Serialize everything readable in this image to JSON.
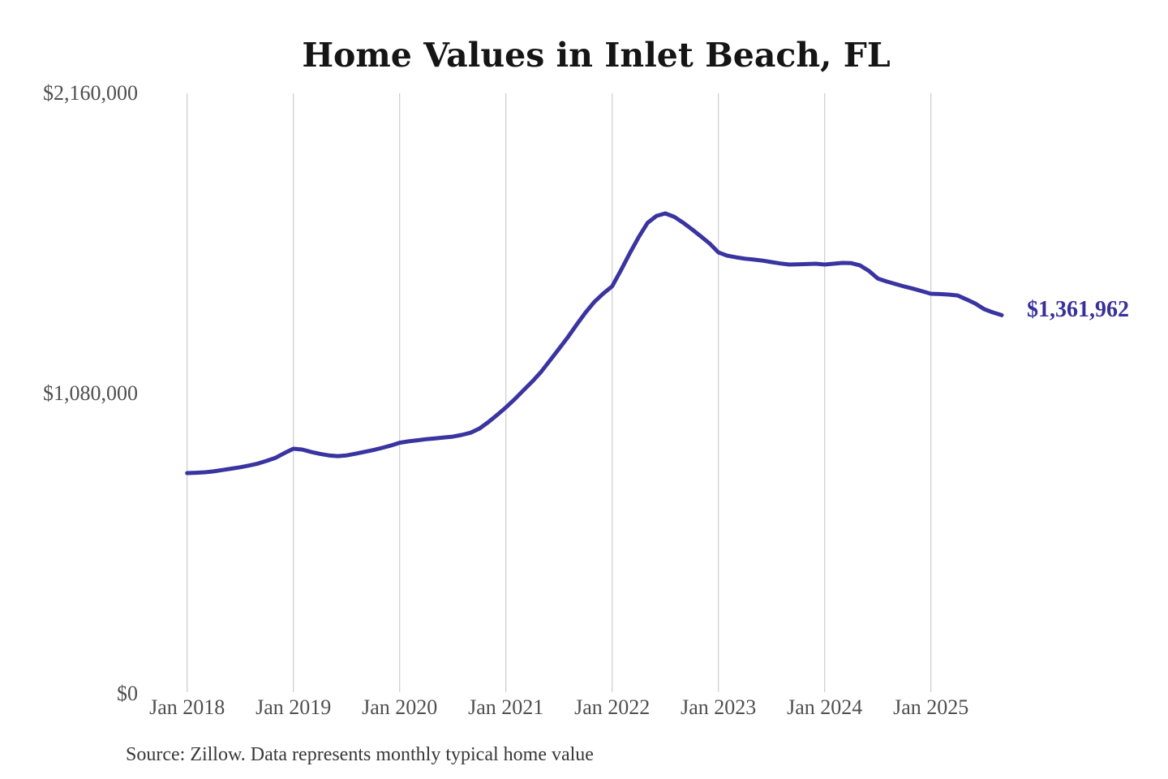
{
  "title": "Home Values in Inlet Beach, FL",
  "source_note": "Source: Zillow. Data represents monthly typical home value",
  "end_label": "$1,361,962",
  "colors": {
    "line": "#3a34a0",
    "end_label": "#39319b",
    "grid": "#cccccc",
    "tick_text": "#4f4f4f",
    "title_text": "#151515",
    "source_text": "#383838"
  },
  "y_axis": {
    "ticks": [
      {
        "label": "$2,160,000",
        "value": 2160000
      },
      {
        "label": "$1,080,000",
        "value": 1080000
      },
      {
        "label": "$0",
        "value": 0
      }
    ]
  },
  "chart_data": {
    "type": "line",
    "title": "Home Values in Inlet Beach, FL",
    "xlabel": "",
    "ylabel": "",
    "ylim": [
      0,
      2160000
    ],
    "grid": "vertical-only",
    "legend": "none",
    "x_tick_labels": [
      "Jan 2018",
      "Jan 2019",
      "Jan 2020",
      "Jan 2021",
      "Jan 2022",
      "Jan 2023",
      "Jan 2024",
      "Jan 2025"
    ],
    "series": [
      {
        "name": "Monthly typical home value",
        "start_month": "2018-01",
        "end_month": "2025-09",
        "interval": "monthly",
        "values": [
          794000,
          795000,
          797000,
          800000,
          805000,
          810000,
          815000,
          821000,
          828000,
          838000,
          849000,
          866000,
          881500,
          878500,
          870000,
          863000,
          857500,
          855000,
          857500,
          863500,
          870000,
          876500,
          884500,
          893000,
          903000,
          908000,
          912000,
          916000,
          919000,
          922000,
          925000,
          931000,
          939000,
          954000,
          977000,
          1003000,
          1030000,
          1060000,
          1092000,
          1124000,
          1159000,
          1200000,
          1241000,
          1283000,
          1328000,
          1372000,
          1410000,
          1440000,
          1466000,
          1524000,
          1585000,
          1643000,
          1694000,
          1719000,
          1728000,
          1716000,
          1695000,
          1671000,
          1646000,
          1620000,
          1588000,
          1576000,
          1570000,
          1565000,
          1562000,
          1558000,
          1553000,
          1548000,
          1544000,
          1545000,
          1546000,
          1547000,
          1544000,
          1547000,
          1550000,
          1549000,
          1541000,
          1521000,
          1494000,
          1483000,
          1474000,
          1465000,
          1457000,
          1448000,
          1439000,
          1438000,
          1436000,
          1433000,
          1419000,
          1404000,
          1384000,
          1372000,
          1361962
        ]
      }
    ],
    "final_point": {
      "month": "2025-09",
      "value": 1361962,
      "label": "$1,361,962"
    }
  }
}
